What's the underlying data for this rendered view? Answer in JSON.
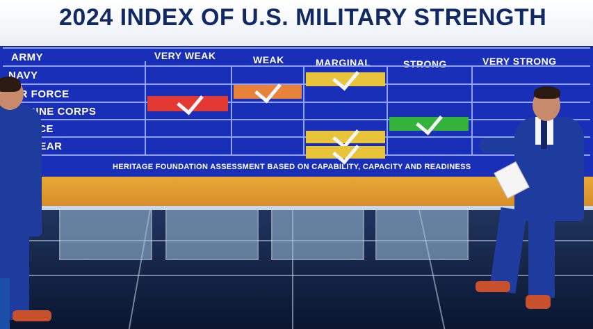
{
  "screen": {
    "title": "2024 INDEX OF U.S. MILITARY STRENGTH",
    "columns": [
      "VERY WEAK",
      "WEAK",
      "MARGINAL",
      "STRONG",
      "VERY STRONG"
    ],
    "rows": [
      {
        "label": "ARMY",
        "rating_index": 2,
        "color": "#e8c43a"
      },
      {
        "label": "NAVY",
        "rating_index": 1,
        "color": "#e8823a"
      },
      {
        "label": "IR FORCE",
        "rating_index": 0,
        "color": "#e23a32"
      },
      {
        "label": "IARINE CORPS",
        "rating_index": 3,
        "color": "#34b23a"
      },
      {
        "label": "SPACE",
        "rating_index": 2,
        "color": "#e8c43a"
      },
      {
        "label": "UCLEAR",
        "rating_index": 2,
        "color": "#e8c43a"
      }
    ],
    "footnote": "HERITAGE FOUNDATION ASSESSMENT BASED ON CAPABILITY, CAPACITY AND READINESS"
  },
  "colors": {
    "board": "#1a2fb8",
    "grid_line": "#8ea4ff",
    "title": "#112a64",
    "stripe": "#e8a837"
  }
}
